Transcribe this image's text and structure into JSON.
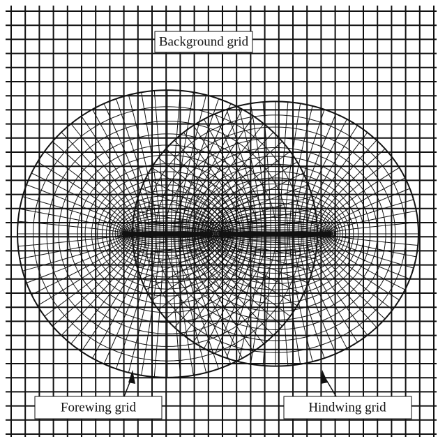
{
  "labels": {
    "background": "Background grid",
    "forewing": "Forewing grid",
    "hindwing": "Hindwing grid"
  }
}
